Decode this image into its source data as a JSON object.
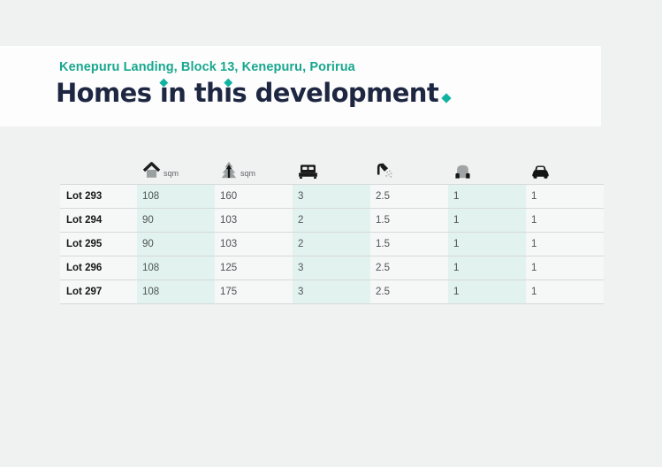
{
  "colors": {
    "page_background": "#f0f1f1",
    "hero_background": "#fdfdfd",
    "accent_teal": "#18a78e",
    "accent_diamond": "#10b3a0",
    "heading_navy": "#1e2742",
    "column_stripe": "#e2f2ef"
  },
  "header": {
    "subtitle": "Kenepuru Landing, Block 13, Kenepuru, Porirua",
    "title": "Homes in this development",
    "title_period": "."
  },
  "table": {
    "columns": [
      {
        "icon": "house-icon",
        "unit": "sqm"
      },
      {
        "icon": "tree-icon",
        "unit": "sqm"
      },
      {
        "icon": "bed-icon"
      },
      {
        "icon": "shower-icon"
      },
      {
        "icon": "garage-car-icon"
      },
      {
        "icon": "car-icon"
      }
    ],
    "rows": [
      {
        "lot": "Lot 293",
        "values": [
          "108",
          "160",
          "3",
          "2.5",
          "1",
          "1"
        ]
      },
      {
        "lot": "Lot 294",
        "values": [
          "90",
          "103",
          "2",
          "1.5",
          "1",
          "1"
        ]
      },
      {
        "lot": "Lot 295",
        "values": [
          "90",
          "103",
          "2",
          "1.5",
          "1",
          "1"
        ]
      },
      {
        "lot": "Lot 296",
        "values": [
          "108",
          "125",
          "3",
          "2.5",
          "1",
          "1"
        ]
      },
      {
        "lot": "Lot 297",
        "values": [
          "108",
          "175",
          "3",
          "2.5",
          "1",
          "1"
        ]
      }
    ]
  }
}
